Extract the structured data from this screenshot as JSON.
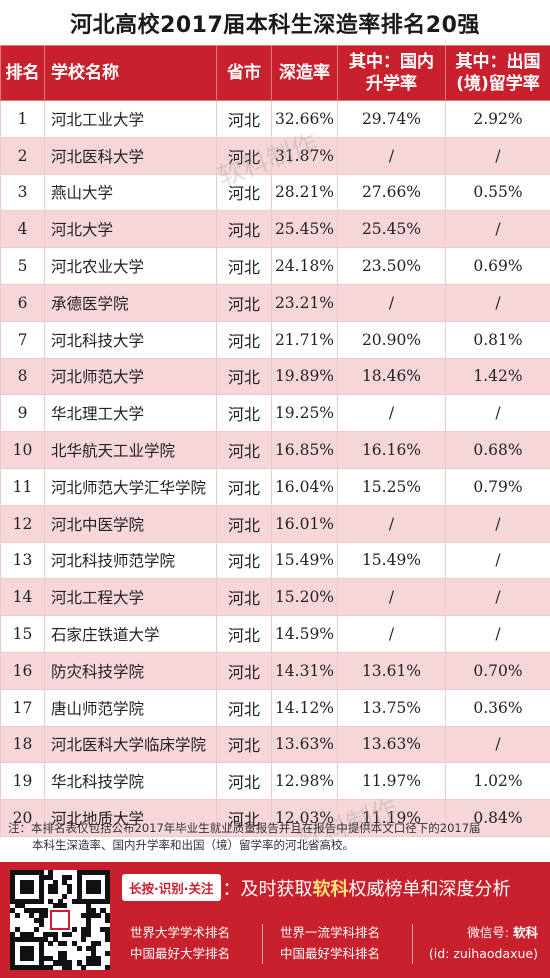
{
  "title": "河北高校2017届本科生深造率排名20强",
  "table": {
    "headers": {
      "rank": "排名",
      "school": "学校名称",
      "province": "省市",
      "rate": "深造率",
      "domestic_l1": "其中：国内",
      "domestic_l2": "升学率",
      "abroad_l1": "其中：出国",
      "abroad_l2": "(境)留学率"
    },
    "rows": [
      {
        "rank": "1",
        "school": "河北工业大学",
        "province": "河北",
        "rate": "32.66%",
        "domestic": "29.74%",
        "abroad": "2.92%"
      },
      {
        "rank": "2",
        "school": "河北医科大学",
        "province": "河北",
        "rate": "31.87%",
        "domestic": "/",
        "abroad": "/"
      },
      {
        "rank": "3",
        "school": "燕山大学",
        "province": "河北",
        "rate": "28.21%",
        "domestic": "27.66%",
        "abroad": "0.55%"
      },
      {
        "rank": "4",
        "school": "河北大学",
        "province": "河北",
        "rate": "25.45%",
        "domestic": "25.45%",
        "abroad": "/"
      },
      {
        "rank": "5",
        "school": "河北农业大学",
        "province": "河北",
        "rate": "24.18%",
        "domestic": "23.50%",
        "abroad": "0.69%"
      },
      {
        "rank": "6",
        "school": "承德医学院",
        "province": "河北",
        "rate": "23.21%",
        "domestic": "/",
        "abroad": "/"
      },
      {
        "rank": "7",
        "school": "河北科技大学",
        "province": "河北",
        "rate": "21.71%",
        "domestic": "20.90%",
        "abroad": "0.81%"
      },
      {
        "rank": "8",
        "school": "河北师范大学",
        "province": "河北",
        "rate": "19.89%",
        "domestic": "18.46%",
        "abroad": "1.42%"
      },
      {
        "rank": "9",
        "school": "华北理工大学",
        "province": "河北",
        "rate": "19.25%",
        "domestic": "/",
        "abroad": "/"
      },
      {
        "rank": "10",
        "school": "北华航天工业学院",
        "province": "河北",
        "rate": "16.85%",
        "domestic": "16.16%",
        "abroad": "0.68%"
      },
      {
        "rank": "11",
        "school": "河北师范大学汇华学院",
        "province": "河北",
        "rate": "16.04%",
        "domestic": "15.25%",
        "abroad": "0.79%"
      },
      {
        "rank": "12",
        "school": "河北中医学院",
        "province": "河北",
        "rate": "16.01%",
        "domestic": "/",
        "abroad": "/"
      },
      {
        "rank": "13",
        "school": "河北科技师范学院",
        "province": "河北",
        "rate": "15.49%",
        "domestic": "15.49%",
        "abroad": "/"
      },
      {
        "rank": "14",
        "school": "河北工程大学",
        "province": "河北",
        "rate": "15.20%",
        "domestic": "/",
        "abroad": "/"
      },
      {
        "rank": "15",
        "school": "石家庄铁道大学",
        "province": "河北",
        "rate": "14.59%",
        "domestic": "/",
        "abroad": "/"
      },
      {
        "rank": "16",
        "school": "防灾科技学院",
        "province": "河北",
        "rate": "14.31%",
        "domestic": "13.61%",
        "abroad": "0.70%"
      },
      {
        "rank": "17",
        "school": "唐山师范学院",
        "province": "河北",
        "rate": "14.12%",
        "domestic": "13.75%",
        "abroad": "0.36%"
      },
      {
        "rank": "18",
        "school": "河北医科大学临床学院",
        "province": "河北",
        "rate": "13.63%",
        "domestic": "13.63%",
        "abroad": "/"
      },
      {
        "rank": "19",
        "school": "华北科技学院",
        "province": "河北",
        "rate": "12.98%",
        "domestic": "11.97%",
        "abroad": "1.02%"
      },
      {
        "rank": "20",
        "school": "河北地质大学",
        "province": "河北",
        "rate": "12.03%",
        "domestic": "11.19%",
        "abroad": "0.84%"
      }
    ]
  },
  "watermark": "软科制作",
  "note": {
    "line1": "注：本排名表仅包括公布2017年毕业生就业质量报告并且在报告中提供本文口径下的2017届",
    "line2": "本科生深造率、国内升学率和出国（境）留学率的河北省高校。"
  },
  "banner": {
    "chip": "长按·识别·关注",
    "slogan_pre": "：及时获取",
    "slogan_brand": "软科",
    "slogan_post": "权威榜单和深度分析",
    "links_col1": [
      "世界大学学术排名",
      "中国最好大学排名"
    ],
    "links_col2": [
      "世界一流学科排名",
      "中国最好学科排名"
    ],
    "wechat_label": "微信号:",
    "wechat_brand": "软科",
    "wechat_id": "(id: zuihaodaxue)"
  },
  "colors": {
    "accent": "#c8202c",
    "row_stripe": "#f6d6d8",
    "slogan_highlight": "#ffe27a"
  }
}
